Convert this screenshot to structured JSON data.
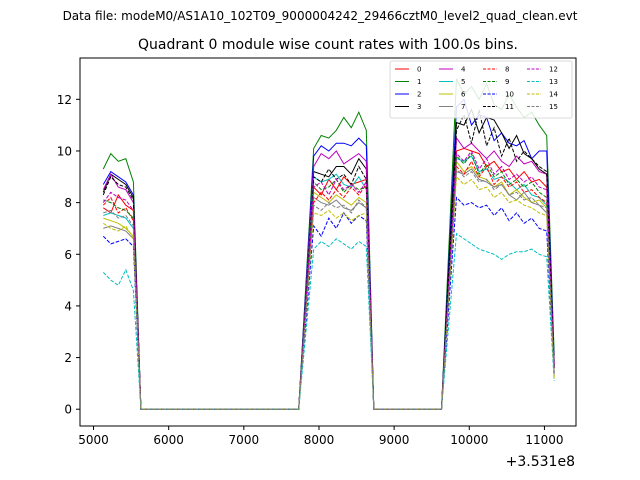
{
  "header": {
    "data_file": "Data file: modeM0/AS1A10_102T09_9000004242_29466cztM0_level2_quad_clean.evt"
  },
  "chart_data": {
    "type": "line",
    "title": "Quadrant 0 module wise count rates with 100.0s bins.",
    "xlabel": "",
    "ylabel": "",
    "x_offset_label": "+3.531e8",
    "xlim": [
      4820,
      11420
    ],
    "ylim": [
      -0.65,
      13.6
    ],
    "x_ticks": [
      5000,
      6000,
      7000,
      8000,
      9000,
      10000,
      11000
    ],
    "x_tick_labels": [
      "5000",
      "6000",
      "7000",
      "8000",
      "9000",
      "10000",
      "11000"
    ],
    "y_ticks": [
      0,
      2,
      4,
      6,
      8,
      10,
      12
    ],
    "y_tick_labels": [
      "0",
      "2",
      "4",
      "6",
      "8",
      "10",
      "12"
    ],
    "grid": false,
    "legend": {
      "position": "top-right",
      "columns": 4
    },
    "segments": [
      {
        "start": 5130,
        "end": 5530
      },
      {
        "start": 7930,
        "end": 8630
      },
      {
        "start": 9830,
        "end": 11030
      }
    ],
    "gaps": [
      {
        "start": 5630,
        "end": 7730
      },
      {
        "start": 8730,
        "end": 9630
      }
    ],
    "series": [
      {
        "name": "0",
        "color": "#ff0000",
        "dash": "solid",
        "seg_values": [
          [
            7.8,
            7.6,
            8.3,
            7.9,
            7.7
          ],
          [
            8.6,
            8.3,
            8.9,
            8.5,
            9.0,
            8.7,
            8.8,
            8.9
          ],
          [
            10.0,
            10.1,
            10.0,
            9.9,
            9.4,
            9.6,
            9.2,
            9.3,
            8.9,
            9.2,
            8.8,
            8.9,
            8.6
          ]
        ],
        "end_value": 1.7
      },
      {
        "name": "1",
        "color": "#008000",
        "dash": "solid",
        "seg_values": [
          [
            9.3,
            9.9,
            9.6,
            9.7,
            8.8
          ],
          [
            10.1,
            10.6,
            10.5,
            10.8,
            11.3,
            10.9,
            11.5,
            10.8
          ],
          [
            12.8,
            12.2,
            12.5,
            12.0,
            12.6,
            11.8,
            11.6,
            12.2,
            11.7,
            11.3,
            11.5,
            11.0,
            10.6
          ]
        ],
        "end_value": 2.1
      },
      {
        "name": "2",
        "color": "#0000ff",
        "dash": "solid",
        "seg_values": [
          [
            8.7,
            9.2,
            9.0,
            8.8,
            8.3
          ],
          [
            9.8,
            10.2,
            10.0,
            10.3,
            10.3,
            10.2,
            10.5,
            10.2
          ],
          [
            11.7,
            12.0,
            11.0,
            11.4,
            11.3,
            10.4,
            10.7,
            10.3,
            10.2,
            10.4,
            9.7,
            10.0,
            10.0
          ]
        ],
        "end_value": 1.8
      },
      {
        "name": "3",
        "color": "#000000",
        "dash": "solid",
        "seg_values": [
          [
            8.4,
            9.1,
            8.9,
            8.7,
            8.2
          ],
          [
            9.2,
            9.1,
            9.0,
            9.4,
            9.4,
            9.1,
            9.7,
            9.3
          ],
          [
            11.1,
            11.0,
            11.6,
            10.7,
            11.3,
            11.2,
            10.7,
            10.1,
            10.6,
            9.9,
            9.7,
            9.3,
            9.1
          ]
        ],
        "end_value": 1.6
      },
      {
        "name": "4",
        "color": "#bf00bf",
        "dash": "solid",
        "seg_values": [
          [
            8.5,
            9.1,
            8.6,
            8.5,
            8.0
          ],
          [
            9.4,
            9.9,
            9.7,
            10.0,
            9.5,
            9.7,
            9.9,
            9.6
          ],
          [
            10.5,
            10.1,
            10.3,
            10.0,
            9.7,
            10.0,
            9.6,
            9.4,
            9.8,
            9.5,
            9.6,
            9.2,
            9.1
          ]
        ],
        "end_value": 1.7
      },
      {
        "name": "5",
        "color": "#00bfbf",
        "dash": "solid",
        "seg_values": [
          [
            7.5,
            7.6,
            7.5,
            7.4,
            7.0
          ],
          [
            9.0,
            8.8,
            8.9,
            9.1,
            8.7,
            8.6,
            9.0,
            8.5
          ],
          [
            9.7,
            9.6,
            9.8,
            9.2,
            9.3,
            8.9,
            9.0,
            8.8,
            8.5,
            8.7,
            8.3,
            8.2,
            7.9
          ]
        ],
        "end_value": 1.5
      },
      {
        "name": "6",
        "color": "#bfbf00",
        "dash": "solid",
        "seg_values": [
          [
            7.4,
            7.3,
            7.2,
            7.0,
            6.7
          ],
          [
            8.4,
            8.2,
            8.0,
            8.3,
            8.1,
            7.9,
            8.2,
            8.0
          ],
          [
            9.6,
            9.2,
            9.4,
            9.0,
            8.9,
            8.6,
            8.8,
            8.3,
            8.5,
            8.2,
            8.0,
            8.1,
            7.8
          ]
        ],
        "end_value": 1.4
      },
      {
        "name": "7",
        "color": "#808080",
        "dash": "solid",
        "seg_values": [
          [
            7.0,
            7.1,
            7.0,
            6.9,
            6.6
          ],
          [
            8.2,
            8.0,
            7.9,
            8.1,
            7.8,
            7.7,
            8.0,
            7.8
          ],
          [
            9.2,
            9.1,
            9.3,
            8.9,
            8.8,
            8.6,
            8.7,
            8.3,
            8.1,
            8.4,
            8.0,
            7.9,
            7.6
          ]
        ],
        "end_value": 1.3
      },
      {
        "name": "8",
        "color": "#ff0000",
        "dash": "dashed",
        "seg_values": [
          [
            7.9,
            8.2,
            7.6,
            7.8,
            7.3
          ],
          [
            8.0,
            8.4,
            8.1,
            8.5,
            8.2,
            8.6,
            8.3,
            8.7
          ],
          [
            9.4,
            9.1,
            9.6,
            9.0,
            9.4,
            8.7,
            9.0,
            8.6,
            8.8,
            8.4,
            8.5,
            8.2,
            8.0
          ]
        ],
        "end_value": 1.6
      },
      {
        "name": "9",
        "color": "#008000",
        "dash": "dashed",
        "seg_values": [
          [
            8.1,
            8.0,
            7.8,
            7.7,
            7.4
          ],
          [
            8.8,
            8.5,
            8.6,
            8.9,
            8.4,
            8.7,
            8.5,
            8.6
          ],
          [
            9.8,
            9.5,
            9.9,
            9.1,
            9.5,
            9.0,
            9.2,
            8.7,
            8.9,
            8.6,
            8.8,
            8.4,
            8.2
          ]
        ],
        "end_value": 1.7
      },
      {
        "name": "10",
        "color": "#0000ff",
        "dash": "dashed",
        "seg_values": [
          [
            6.7,
            6.4,
            6.5,
            6.6,
            6.3
          ],
          [
            7.1,
            6.7,
            7.4,
            7.0,
            7.6,
            7.2,
            7.5,
            7.3
          ],
          [
            8.2,
            7.9,
            8.0,
            7.8,
            7.9,
            7.5,
            7.8,
            7.3,
            7.6,
            7.2,
            7.4,
            7.0,
            6.9
          ]
        ],
        "end_value": 1.4
      },
      {
        "name": "11",
        "color": "#000000",
        "dash": "dashed",
        "seg_values": [
          [
            8.3,
            9.0,
            8.7,
            8.6,
            8.1
          ],
          [
            9.0,
            8.8,
            9.3,
            8.9,
            9.1,
            8.7,
            9.4,
            8.9
          ],
          [
            10.8,
            11.4,
            10.3,
            11.6,
            10.2,
            10.9,
            9.8,
            10.5,
            9.6,
            10.0,
            9.7,
            9.4,
            9.2
          ]
        ],
        "end_value": 1.6
      },
      {
        "name": "12",
        "color": "#bf00bf",
        "dash": "dashed",
        "seg_values": [
          [
            8.0,
            8.4,
            8.2,
            8.1,
            7.7
          ],
          [
            8.6,
            8.8,
            8.3,
            8.9,
            8.5,
            8.7,
            8.4,
            8.8
          ],
          [
            9.9,
            9.6,
            10.0,
            9.3,
            9.7,
            9.1,
            9.4,
            8.9,
            9.1,
            8.8,
            9.0,
            8.6,
            8.5
          ]
        ],
        "end_value": 1.6
      },
      {
        "name": "13",
        "color": "#00bfbf",
        "dash": "dashed",
        "seg_values": [
          [
            5.3,
            5.0,
            4.8,
            5.4,
            4.6
          ],
          [
            6.2,
            6.5,
            6.3,
            6.6,
            6.4,
            6.2,
            6.5,
            6.3
          ],
          [
            6.8,
            6.6,
            6.4,
            6.2,
            6.1,
            6.0,
            5.8,
            6.0,
            6.1,
            6.1,
            6.2,
            6.0,
            5.9
          ]
        ],
        "end_value": 1.1
      },
      {
        "name": "14",
        "color": "#bfbf00",
        "dash": "dashed",
        "seg_values": [
          [
            7.2,
            7.0,
            6.9,
            7.1,
            6.6
          ],
          [
            7.6,
            7.5,
            7.7,
            7.4,
            7.6,
            7.3,
            7.5,
            7.6
          ],
          [
            9.0,
            8.7,
            8.9,
            8.5,
            8.6,
            8.2,
            8.4,
            8.0,
            8.1,
            7.9,
            7.8,
            7.6,
            7.5
          ]
        ],
        "end_value": 1.2
      },
      {
        "name": "15",
        "color": "#808080",
        "dash": "dashed",
        "seg_values": [
          [
            7.6,
            7.7,
            7.4,
            7.5,
            7.1
          ],
          [
            7.9,
            7.7,
            8.0,
            7.8,
            7.9,
            7.6,
            8.1,
            7.8
          ],
          [
            9.3,
            9.0,
            9.2,
            8.8,
            8.9,
            8.5,
            8.7,
            8.3,
            8.4,
            8.1,
            8.2,
            7.9,
            7.8
          ]
        ],
        "end_value": 1.3
      }
    ]
  }
}
